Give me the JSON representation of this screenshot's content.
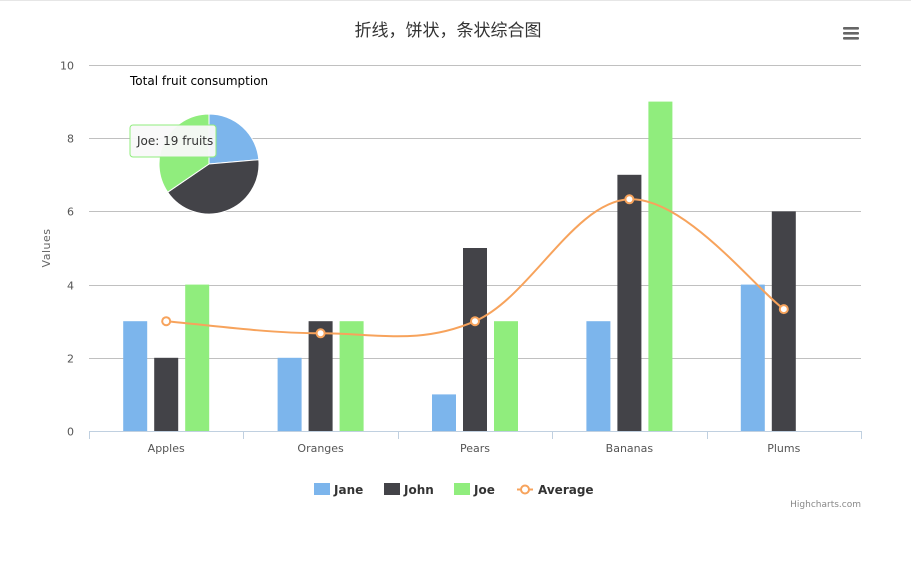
{
  "chart_data": {
    "type": "bar",
    "title": "折线，饼状，条状综合图",
    "ylabel": "Values",
    "xlabel": "",
    "ylim": [
      0,
      10
    ],
    "yticks": [
      0,
      2,
      4,
      6,
      8,
      10
    ],
    "grid": true,
    "legend_placement": "bottom-center",
    "categories": [
      "Apples",
      "Oranges",
      "Pears",
      "Bananas",
      "Plums"
    ],
    "series": [
      {
        "name": "Jane",
        "type": "column",
        "color": "#7cb5ec",
        "values": [
          3,
          2,
          1,
          3,
          4
        ]
      },
      {
        "name": "John",
        "type": "column",
        "color": "#434348",
        "values": [
          2,
          3,
          5,
          7,
          6
        ]
      },
      {
        "name": "Joe",
        "type": "column",
        "color": "#90ed7d",
        "values": [
          4,
          3,
          3,
          9,
          0
        ]
      },
      {
        "name": "Average",
        "type": "spline",
        "color": "#f7a35c",
        "values": [
          3,
          2.67,
          3,
          6.33,
          3.33
        ]
      }
    ],
    "pie": {
      "title": "Total fruit consumption",
      "slices": [
        {
          "name": "Jane",
          "value": 13,
          "color": "#7cb5ec"
        },
        {
          "name": "John",
          "value": 23,
          "color": "#434348"
        },
        {
          "name": "Joe",
          "value": 19,
          "color": "#90ed7d"
        }
      ]
    },
    "tooltip": "Joe: 19 fruits",
    "credits": "Highcharts.com"
  },
  "menu_icon": "hamburger-menu-icon"
}
